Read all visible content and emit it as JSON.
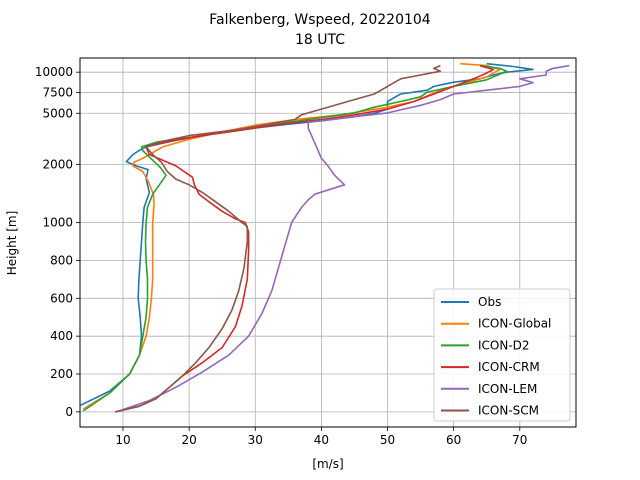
{
  "chart_data": {
    "type": "line",
    "title": "Falkenberg, Wspeed, 20220104",
    "subtitle": "18 UTC",
    "xlabel": "[m/s]",
    "ylabel": "Height [m]",
    "xlim": [
      3.5,
      78.5
    ],
    "x_ticks": [
      10,
      20,
      30,
      40,
      50,
      60,
      70
    ],
    "y_ticks": [
      {
        "label": "0",
        "u": 0
      },
      {
        "label": "200",
        "u": 200
      },
      {
        "label": "400",
        "u": 400
      },
      {
        "label": "600",
        "u": 600
      },
      {
        "label": "800",
        "u": 800
      },
      {
        "label": "1000",
        "u": 1000
      },
      {
        "label": "2000",
        "u": 1308
      },
      {
        "label": "5000",
        "u": 1578
      },
      {
        "label": "7500",
        "u": 1688
      },
      {
        "label": "10000",
        "u": 1795
      }
    ],
    "y_scale": "piecewise: linear 0–1000 m, compressed above 1000 m",
    "ulim": [
      -80,
      1870
    ],
    "grid": true,
    "legend_position": "bottom-right",
    "series": [
      {
        "name": "Obs",
        "color": "#1f77b4",
        "points": [
          [
            3.6,
            35
          ],
          [
            8,
            110
          ],
          [
            11,
            200
          ],
          [
            12.5,
            300
          ],
          [
            12.8,
            400
          ],
          [
            12.6,
            500
          ],
          [
            12.3,
            600
          ],
          [
            12.4,
            700
          ],
          [
            12.6,
            800
          ],
          [
            12.8,
            900
          ],
          [
            13,
            1000
          ],
          [
            13.2,
            1080
          ],
          [
            14,
            1160
          ],
          [
            13.5,
            1230
          ],
          [
            13.8,
            1280
          ],
          [
            12,
            1300
          ],
          [
            10.5,
            1322
          ],
          [
            11.5,
            1360
          ],
          [
            12.5,
            1382
          ],
          [
            13.5,
            1400
          ],
          [
            18,
            1435
          ],
          [
            22,
            1460
          ],
          [
            26,
            1480
          ],
          [
            30,
            1500
          ],
          [
            35,
            1520
          ],
          [
            40,
            1538
          ],
          [
            45,
            1560
          ],
          [
            48,
            1578
          ],
          [
            50,
            1600
          ],
          [
            50,
            1640
          ],
          [
            51,
            1660
          ],
          [
            52,
            1680
          ],
          [
            56,
            1700
          ],
          [
            57,
            1720
          ],
          [
            60,
            1742
          ],
          [
            64,
            1760
          ],
          [
            66,
            1780
          ],
          [
            68,
            1795
          ],
          [
            72,
            1810
          ],
          [
            69,
            1825
          ],
          [
            65,
            1840
          ]
        ]
      },
      {
        "name": "ICON-Global",
        "color": "#ff7f0e",
        "points": [
          [
            4,
            15
          ],
          [
            8,
            100
          ],
          [
            11,
            200
          ],
          [
            12.5,
            300
          ],
          [
            13.5,
            400
          ],
          [
            14,
            500
          ],
          [
            14.3,
            600
          ],
          [
            14.5,
            700
          ],
          [
            14.5,
            800
          ],
          [
            14.5,
            900
          ],
          [
            14.5,
            1000
          ],
          [
            14.7,
            1100
          ],
          [
            14.6,
            1150
          ],
          [
            13.8,
            1220
          ],
          [
            13,
            1270
          ],
          [
            11.5,
            1300
          ],
          [
            11.7,
            1320
          ],
          [
            13,
            1340
          ],
          [
            14,
            1360
          ],
          [
            16,
            1400
          ],
          [
            20,
            1440
          ],
          [
            25,
            1480
          ],
          [
            30,
            1515
          ],
          [
            36,
            1545
          ],
          [
            43,
            1570
          ],
          [
            50,
            1610
          ],
          [
            54,
            1640
          ],
          [
            56,
            1670
          ],
          [
            58,
            1700
          ],
          [
            62,
            1740
          ],
          [
            65,
            1770
          ],
          [
            66,
            1790
          ],
          [
            67,
            1810
          ],
          [
            65,
            1830
          ],
          [
            61,
            1840
          ]
        ]
      },
      {
        "name": "ICON-D2",
        "color": "#2ca02c",
        "points": [
          [
            4,
            5
          ],
          [
            8,
            100
          ],
          [
            11,
            200
          ],
          [
            12.5,
            300
          ],
          [
            13,
            400
          ],
          [
            13.5,
            500
          ],
          [
            13.7,
            600
          ],
          [
            13.7,
            700
          ],
          [
            13.5,
            800
          ],
          [
            13.4,
            900
          ],
          [
            13.5,
            1000
          ],
          [
            13.7,
            1080
          ],
          [
            14.5,
            1150
          ],
          [
            15.5,
            1200
          ],
          [
            16.5,
            1250
          ],
          [
            15.7,
            1290
          ],
          [
            14.5,
            1330
          ],
          [
            13,
            1380
          ],
          [
            12.8,
            1400
          ],
          [
            15,
            1425
          ],
          [
            20,
            1450
          ],
          [
            28,
            1490
          ],
          [
            35,
            1530
          ],
          [
            40,
            1555
          ],
          [
            45,
            1580
          ],
          [
            48,
            1610
          ],
          [
            52,
            1640
          ],
          [
            55,
            1665
          ],
          [
            56,
            1690
          ],
          [
            60,
            1720
          ],
          [
            65,
            1755
          ],
          [
            67,
            1785
          ],
          [
            68,
            1800
          ],
          [
            67,
            1815
          ],
          [
            64,
            1830
          ]
        ]
      },
      {
        "name": "ICON-CRM",
        "color": "#d62728",
        "points": [
          [
            8.8,
            0
          ],
          [
            12.5,
            30
          ],
          [
            15,
            70
          ],
          [
            17,
            130
          ],
          [
            19,
            190
          ],
          [
            22,
            260
          ],
          [
            25,
            340
          ],
          [
            27,
            450
          ],
          [
            28,
            560
          ],
          [
            28.8,
            700
          ],
          [
            29,
            850
          ],
          [
            29,
            950
          ],
          [
            28.5,
            1000
          ],
          [
            27,
            1020
          ],
          [
            25,
            1060
          ],
          [
            23,
            1110
          ],
          [
            21.5,
            1150
          ],
          [
            20.8,
            1200
          ],
          [
            20.5,
            1240
          ],
          [
            18,
            1300
          ],
          [
            14,
            1360
          ],
          [
            13.5,
            1400
          ],
          [
            17,
            1430
          ],
          [
            22,
            1460
          ],
          [
            28,
            1490
          ],
          [
            34,
            1520
          ],
          [
            40,
            1545
          ],
          [
            45,
            1570
          ],
          [
            50,
            1600
          ],
          [
            54,
            1640
          ],
          [
            57,
            1680
          ],
          [
            60,
            1720
          ],
          [
            63,
            1760
          ],
          [
            65,
            1790
          ],
          [
            66,
            1810
          ],
          [
            64,
            1828
          ]
        ]
      },
      {
        "name": "ICON-LEM",
        "color": "#9467bd",
        "points": [
          [
            9,
            0
          ],
          [
            14,
            60
          ],
          [
            18,
            130
          ],
          [
            22,
            210
          ],
          [
            26,
            300
          ],
          [
            29,
            400
          ],
          [
            31,
            520
          ],
          [
            32.5,
            640
          ],
          [
            33.5,
            760
          ],
          [
            34.5,
            880
          ],
          [
            35.5,
            1000
          ],
          [
            37,
            1080
          ],
          [
            38,
            1120
          ],
          [
            39,
            1150
          ],
          [
            43.5,
            1200
          ],
          [
            42,
            1250
          ],
          [
            41,
            1300
          ],
          [
            40,
            1340
          ],
          [
            39.5,
            1380
          ],
          [
            39,
            1420
          ],
          [
            38.5,
            1460
          ],
          [
            38,
            1500
          ],
          [
            38,
            1530
          ],
          [
            45,
            1560
          ],
          [
            50,
            1580
          ],
          [
            55,
            1620
          ],
          [
            58,
            1650
          ],
          [
            60,
            1680
          ],
          [
            65,
            1700
          ],
          [
            70,
            1720
          ],
          [
            72,
            1740
          ],
          [
            70,
            1760
          ],
          [
            74,
            1780
          ],
          [
            74,
            1800
          ],
          [
            75,
            1815
          ],
          [
            77.5,
            1830
          ]
        ]
      },
      {
        "name": "ICON-SCM",
        "color": "#8c564b",
        "points": [
          [
            8.8,
            0
          ],
          [
            12.5,
            30
          ],
          [
            15,
            70
          ],
          [
            17,
            130
          ],
          [
            19,
            190
          ],
          [
            21,
            260
          ],
          [
            23,
            340
          ],
          [
            25,
            440
          ],
          [
            26.5,
            540
          ],
          [
            27.5,
            640
          ],
          [
            28.3,
            760
          ],
          [
            28.8,
            900
          ],
          [
            28.8,
            980
          ],
          [
            28,
            1000
          ],
          [
            26,
            1060
          ],
          [
            24,
            1110
          ],
          [
            22,
            1160
          ],
          [
            20,
            1200
          ],
          [
            18,
            1230
          ],
          [
            16.7,
            1270
          ],
          [
            15.8,
            1320
          ],
          [
            14.5,
            1360
          ],
          [
            13.5,
            1400
          ],
          [
            16,
            1430
          ],
          [
            20,
            1460
          ],
          [
            27,
            1490
          ],
          [
            32,
            1520
          ],
          [
            36,
            1545
          ],
          [
            37,
            1570
          ],
          [
            40,
            1600
          ],
          [
            44,
            1640
          ],
          [
            48,
            1680
          ],
          [
            50,
            1720
          ],
          [
            52,
            1760
          ],
          [
            55,
            1780
          ],
          [
            58,
            1800
          ],
          [
            57,
            1815
          ],
          [
            58,
            1830
          ]
        ]
      }
    ]
  }
}
